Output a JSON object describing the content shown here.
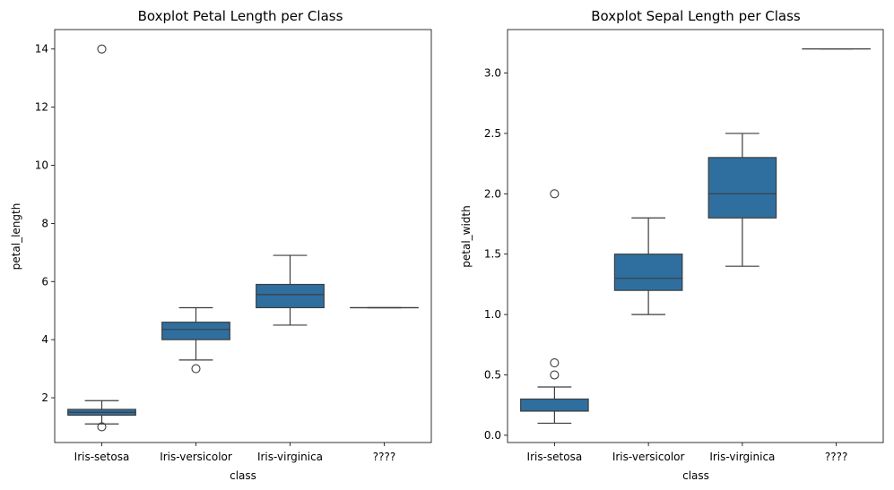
{
  "chart_data": [
    {
      "type": "box",
      "title": "Boxplot Petal Length per Class",
      "xlabel": "class",
      "ylabel": "petal_length",
      "categories": [
        "Iris-setosa",
        "Iris-versicolor",
        "Iris-virginica",
        "????"
      ],
      "ylim": [
        0.46,
        14.67
      ],
      "yticks": [
        2,
        4,
        6,
        8,
        10,
        12,
        14
      ],
      "ytick_labels": [
        "2",
        "4",
        "6",
        "8",
        "10",
        "12",
        "14"
      ],
      "box_color": "#2f6f9f",
      "line_color": "#3d3d3d",
      "boxes": [
        {
          "category": "Iris-setosa",
          "whisker_low": 1.1,
          "q1": 1.4,
          "median": 1.5,
          "q3": 1.6,
          "whisker_high": 1.9,
          "outliers": [
            14.0,
            1.0
          ]
        },
        {
          "category": "Iris-versicolor",
          "whisker_low": 3.3,
          "q1": 4.0,
          "median": 4.35,
          "q3": 4.6,
          "whisker_high": 5.1,
          "outliers": [
            3.0
          ]
        },
        {
          "category": "Iris-virginica",
          "whisker_low": 4.5,
          "q1": 5.1,
          "median": 5.55,
          "q3": 5.9,
          "whisker_high": 6.9,
          "outliers": []
        },
        {
          "category": "????",
          "whisker_low": 5.1,
          "q1": 5.1,
          "median": 5.1,
          "q3": 5.1,
          "whisker_high": 5.1,
          "outliers": []
        }
      ]
    },
    {
      "type": "box",
      "title": "Boxplot Sepal Length per Class",
      "xlabel": "class",
      "ylabel": "petal_width",
      "categories": [
        "Iris-setosa",
        "Iris-versicolor",
        "Iris-virginica",
        "????"
      ],
      "ylim": [
        -0.06,
        3.36
      ],
      "yticks": [
        0.0,
        0.5,
        1.0,
        1.5,
        2.0,
        2.5,
        3.0
      ],
      "ytick_labels": [
        "0.0",
        "0.5",
        "1.0",
        "1.5",
        "2.0",
        "2.5",
        "3.0"
      ],
      "box_color": "#2f6f9f",
      "line_color": "#3d3d3d",
      "boxes": [
        {
          "category": "Iris-setosa",
          "whisker_low": 0.1,
          "q1": 0.2,
          "median": 0.2,
          "q3": 0.3,
          "whisker_high": 0.4,
          "outliers": [
            2.0,
            0.6,
            0.5
          ]
        },
        {
          "category": "Iris-versicolor",
          "whisker_low": 1.0,
          "q1": 1.2,
          "median": 1.3,
          "q3": 1.5,
          "whisker_high": 1.8,
          "outliers": []
        },
        {
          "category": "Iris-virginica",
          "whisker_low": 1.4,
          "q1": 1.8,
          "median": 2.0,
          "q3": 2.3,
          "whisker_high": 2.5,
          "outliers": []
        },
        {
          "category": "????",
          "whisker_low": 3.2,
          "q1": 3.2,
          "median": 3.2,
          "q3": 3.2,
          "whisker_high": 3.2,
          "outliers": []
        }
      ]
    }
  ]
}
